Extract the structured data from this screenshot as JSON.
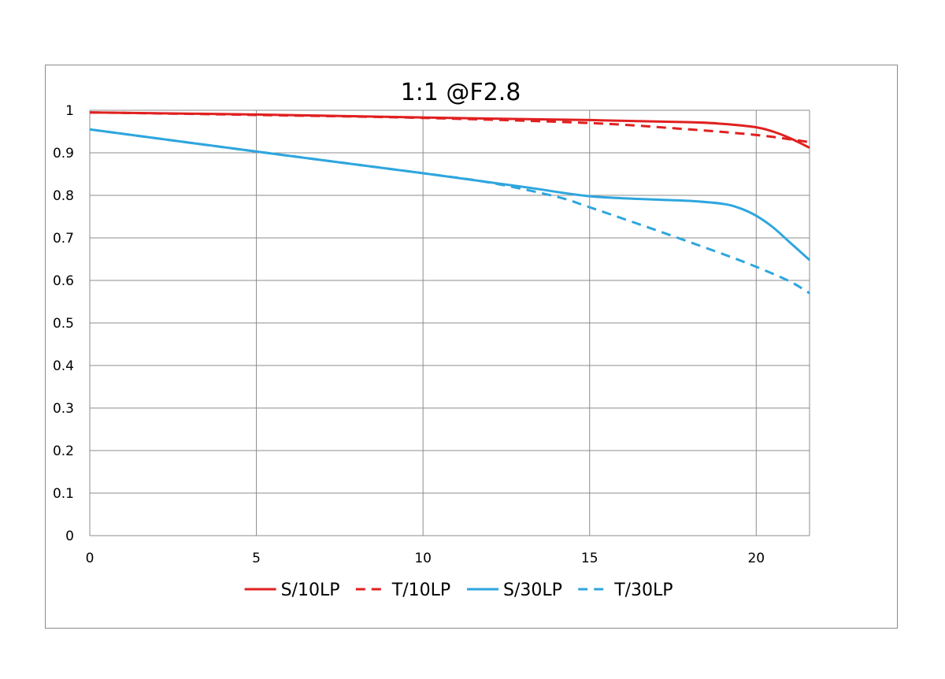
{
  "chart_data": {
    "type": "line",
    "title": "1:1  @F2.8",
    "xlabel": "",
    "ylabel": "",
    "xlim": [
      0,
      21.6
    ],
    "ylim": [
      0,
      1
    ],
    "x_ticks": [
      0,
      5,
      10,
      15,
      20
    ],
    "x_tick_labels": [
      "0",
      "5",
      "10",
      "15",
      "20"
    ],
    "y_ticks": [
      0,
      0.1,
      0.2,
      0.3,
      0.4,
      0.5,
      0.6,
      0.7,
      0.8,
      0.9,
      1
    ],
    "y_tick_labels": [
      "0",
      "0.1",
      "0.2",
      "0.3",
      "0.4",
      "0.5",
      "0.6",
      "0.7",
      "0.8",
      "0.9",
      "1"
    ],
    "grid": true,
    "legend_position": "bottom",
    "series": [
      {
        "name": "S/10LP",
        "color": "#e02020",
        "dash": "solid",
        "points": [
          [
            0,
            0.995
          ],
          [
            5,
            0.99
          ],
          [
            10,
            0.983
          ],
          [
            15,
            0.977
          ],
          [
            18,
            0.972
          ],
          [
            19,
            0.968
          ],
          [
            20,
            0.96
          ],
          [
            20.5,
            0.95
          ],
          [
            21,
            0.935
          ],
          [
            21.6,
            0.912
          ]
        ]
      },
      {
        "name": "T/10LP",
        "color": "#e02020",
        "dash": "dashed",
        "points": [
          [
            0,
            0.995
          ],
          [
            5,
            0.989
          ],
          [
            10,
            0.982
          ],
          [
            15,
            0.97
          ],
          [
            18,
            0.955
          ],
          [
            20,
            0.942
          ],
          [
            21,
            0.932
          ],
          [
            21.6,
            0.925
          ]
        ]
      },
      {
        "name": "S/30LP",
        "color": "#2ea6de",
        "dash": "solid",
        "points": [
          [
            0,
            0.955
          ],
          [
            5,
            0.903
          ],
          [
            10,
            0.852
          ],
          [
            13,
            0.82
          ],
          [
            15,
            0.798
          ],
          [
            17,
            0.79
          ],
          [
            18,
            0.787
          ],
          [
            19,
            0.78
          ],
          [
            19.5,
            0.77
          ],
          [
            20,
            0.752
          ],
          [
            20.5,
            0.725
          ],
          [
            21,
            0.69
          ],
          [
            21.6,
            0.648
          ]
        ]
      },
      {
        "name": "T/30LP",
        "color": "#2ea6de",
        "dash": "dashed",
        "points": [
          [
            0,
            0.955
          ],
          [
            5,
            0.903
          ],
          [
            10,
            0.852
          ],
          [
            12,
            0.83
          ],
          [
            14,
            0.797
          ],
          [
            15,
            0.772
          ],
          [
            17,
            0.718
          ],
          [
            19,
            0.662
          ],
          [
            20,
            0.632
          ],
          [
            21,
            0.598
          ],
          [
            21.6,
            0.57
          ]
        ]
      }
    ]
  }
}
